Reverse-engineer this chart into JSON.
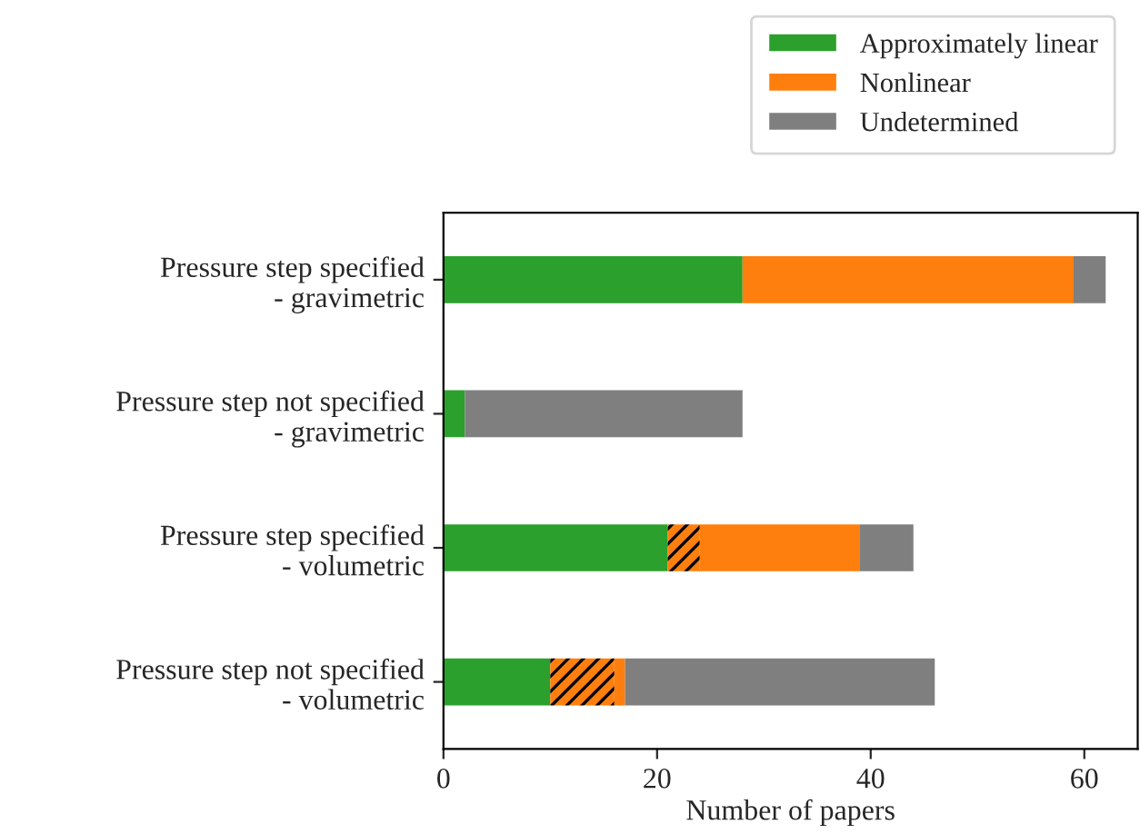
{
  "chart_data": {
    "type": "bar",
    "orientation": "horizontal",
    "stacked": true,
    "xlabel": "Number of papers",
    "categories": [
      "Pressure step specified\n- gravimetric",
      "Pressure step not specified\n- gravimetric",
      "Pressure step specified\n- volumetric",
      "Pressure step not specified\n- volumetric"
    ],
    "series": [
      {
        "name": "Approximately linear",
        "color": "#2ca02c",
        "values": [
          28,
          2,
          21,
          10
        ]
      },
      {
        "color": "#ff7f0e",
        "values": [
          0,
          0,
          3,
          6
        ]
      },
      {
        "name": "Nonlinear",
        "color": "#ff7f0e",
        "values": [
          31,
          0,
          15,
          1
        ]
      },
      {
        "name": "Undetermined",
        "color": "#7f7f7f",
        "values": [
          3,
          26,
          5,
          29
        ]
      }
    ],
    "xlim": [
      0,
      65
    ],
    "xticks": [
      0,
      20,
      40,
      60
    ],
    "grid": false,
    "legend": "top right"
  }
}
